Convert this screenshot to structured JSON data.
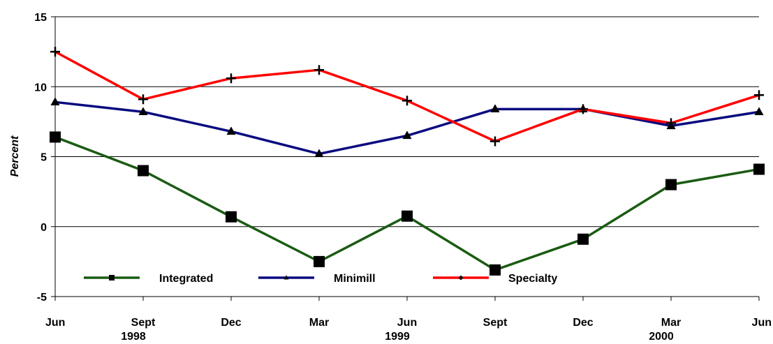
{
  "chart_data": {
    "type": "line",
    "title": "",
    "xlabel": "",
    "ylabel": "Percent",
    "ylim": [
      -5,
      15
    ],
    "yticks": [
      "15",
      "10",
      "5",
      "0",
      "-5"
    ],
    "categories": [
      "Jun",
      "Sept",
      "Dec",
      "Mar",
      "Jun",
      "Sept",
      "Dec",
      "Mar",
      "Jun"
    ],
    "year_labels": [
      "1998",
      "1999",
      "2000"
    ],
    "grid": true,
    "legend_position": "bottom-inside",
    "series": [
      {
        "name": "Integrated",
        "color": "#1a5c12",
        "marker": "square",
        "values": [
          6.4,
          4.0,
          0.7,
          -2.5,
          0.75,
          -3.1,
          -0.9,
          3.0,
          4.1
        ]
      },
      {
        "name": "Minimill",
        "color": "#0a0a80",
        "marker": "triangle",
        "values": [
          8.9,
          8.2,
          6.8,
          5.2,
          6.5,
          8.4,
          8.4,
          7.2,
          8.2
        ]
      },
      {
        "name": "Specialty",
        "color": "#ff0000",
        "marker": "plus",
        "values": [
          12.5,
          9.1,
          10.6,
          11.2,
          9.0,
          6.1,
          8.4,
          7.4,
          9.4
        ]
      }
    ]
  }
}
